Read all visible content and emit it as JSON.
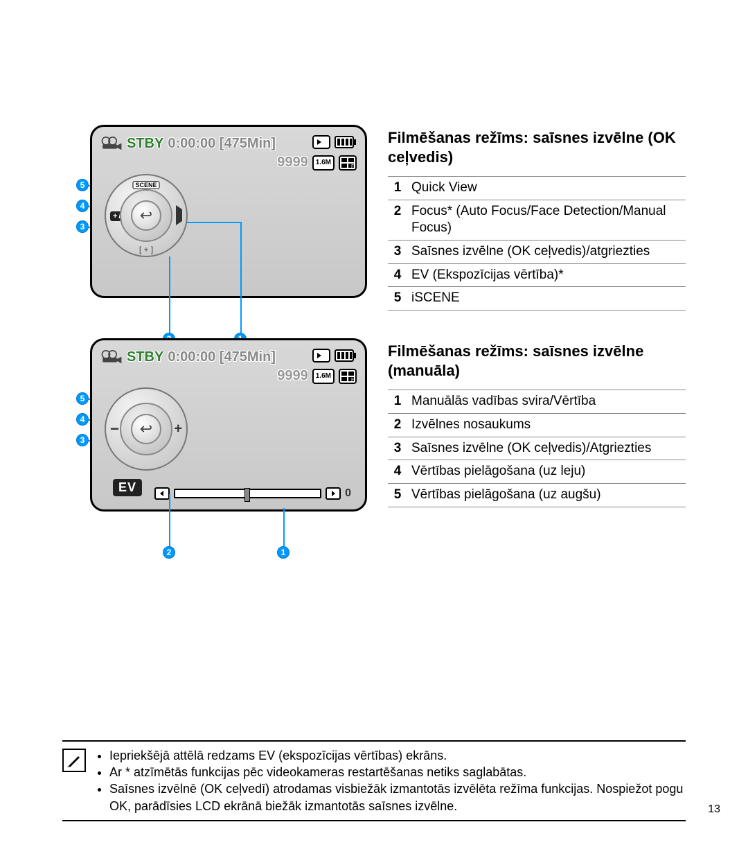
{
  "screen1": {
    "stby": "STBY",
    "timer": "0:00:00 [475Min]",
    "count": "9999",
    "res_badge": "1.6M",
    "dpad": {
      "top_scene": "SCENE",
      "left_ev": "+/-",
      "center": "↩",
      "right": "▶",
      "bottom": "[ + ]"
    },
    "callouts": {
      "c1": "1",
      "c2": "2",
      "c3": "3",
      "c4": "4",
      "c5": "5"
    },
    "colors": {
      "accent": "#0099ff",
      "stby": "#2f7f2f"
    }
  },
  "screen2": {
    "stby": "STBY",
    "timer": "0:00:00 [475Min]",
    "count": "9999",
    "res_badge": "1.6M",
    "ev_label": "EV",
    "dpad": {
      "left": "−",
      "right": "+",
      "center": "↩"
    },
    "slider": {
      "value": "0",
      "thumb_pos_pct": 48
    },
    "callouts": {
      "c1": "1",
      "c2": "2",
      "c3": "3",
      "c4": "4",
      "c5": "5"
    }
  },
  "table1": {
    "heading": "Filmēšanas režīms: saīsnes izvēlne (OK ceļvedis)",
    "rows": [
      {
        "n": "1",
        "t": "Quick View"
      },
      {
        "n": "2",
        "t": "Focus* (Auto Focus/Face Detection/Manual Focus)"
      },
      {
        "n": "3",
        "t": "Saīsnes izvēlne (OK ceļvedis)/atgriezties"
      },
      {
        "n": "4",
        "t": "EV (Ekspozīcijas vērtība)*"
      },
      {
        "n": "5",
        "t": "iSCENE"
      }
    ]
  },
  "table2": {
    "heading": "Filmēšanas režīms: saīsnes izvēlne (manuāla)",
    "rows": [
      {
        "n": "1",
        "t": "Manuālās vadības svira/Vērtība"
      },
      {
        "n": "2",
        "t": "Izvēlnes nosaukums"
      },
      {
        "n": "3",
        "t": "Saīsnes izvēlne (OK ceļvedis)/Atgriezties"
      },
      {
        "n": "4",
        "t": "Vērtības pielāgošana (uz leju)"
      },
      {
        "n": "5",
        "t": "Vērtības pielāgošana (uz augšu)"
      }
    ]
  },
  "notes": {
    "items": [
      "Iepriekšējā attēlā redzams EV (ekspozīcijas vērtības) ekrāns.",
      "Ar * atzīmētās funkcijas pēc videokameras restartēšanas netiks saglabātas.",
      "Saīsnes izvēlnē (OK ceļvedī) atrodamas visbiežāk izmantotās izvēlēta režīma funkcijas. Nospiežot pogu OK, parādīsies LCD ekrānā biežāk izmantotās saīsnes izvēlne."
    ]
  },
  "page_number": "13"
}
